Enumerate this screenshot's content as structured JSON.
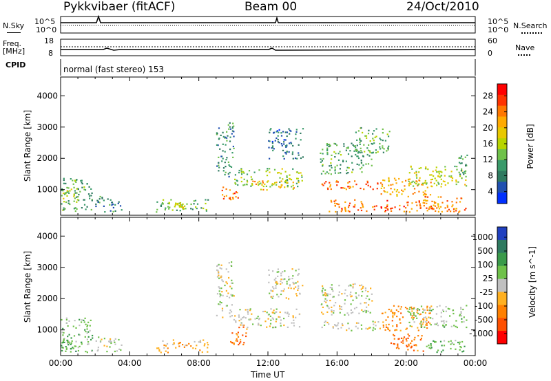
{
  "header": {
    "station": "Pykkvibaer (fitACF)",
    "beam": "Beam 00",
    "date": "24/Oct/2010"
  },
  "nsky_panel": {
    "left_label": "N.Sky",
    "right_label": "N.Search",
    "left_ticks": [
      "10^5",
      "10^0"
    ],
    "right_ticks": [
      "10^5",
      "10^0"
    ]
  },
  "freq_panel": {
    "left_label_line1": "Freq.",
    "left_label_line2": "[MHz]",
    "right_label": "Nave",
    "left_ticks": [
      "18",
      "8"
    ],
    "right_ticks": [
      "60",
      "0"
    ]
  },
  "cpid_panel": {
    "label": "CPID",
    "text": "normal (fast stereo) 153"
  },
  "power_colorbar": {
    "label": "Power [dB]",
    "ticks": [
      "28",
      "24",
      "20",
      "16",
      "12",
      "8",
      "4"
    ],
    "colors": [
      "#ff0000",
      "#ff3300",
      "#ff7700",
      "#ffaa00",
      "#e8c800",
      "#b8d400",
      "#6fc14a",
      "#3a9a6a",
      "#2f7a60",
      "#2050b0",
      "#0030ff"
    ]
  },
  "velocity_colorbar": {
    "label": "Velocity [m s^-1]",
    "ticks": [
      "1000",
      "500",
      "100",
      "25",
      "-25",
      "-100",
      "-500",
      "-1000"
    ],
    "colors": [
      "#2040c0",
      "#2f7a60",
      "#3a9a4a",
      "#6fc14a",
      "#c0c0c0",
      "#ffb020",
      "#ff8000",
      "#ff5000",
      "#ff0000"
    ]
  },
  "axes": {
    "ylabel": "Slant Range [km]",
    "xlabel": "Time UT",
    "yticks": [
      "4000",
      "3000",
      "2000",
      "1000"
    ],
    "xticks": [
      "00:00",
      "04:00",
      "08:00",
      "12:00",
      "16:00",
      "20:00",
      "00:00"
    ]
  },
  "chart_data": [
    {
      "type": "heatmap",
      "title": "Power",
      "xlabel": "Time UT",
      "ylabel": "Slant Range [km]",
      "xlim": [
        0,
        24
      ],
      "ylim": [
        180,
        4600
      ],
      "colorbar": {
        "label": "Power [dB]",
        "range": [
          0,
          32
        ]
      },
      "regions": [
        {
          "t": [
            0.0,
            1.8
          ],
          "r": [
            300,
            1400
          ],
          "v": 10
        },
        {
          "t": [
            0.0,
            1.0
          ],
          "r": [
            600,
            1100
          ],
          "v": 16
        },
        {
          "t": [
            2.0,
            3.5
          ],
          "r": [
            300,
            800
          ],
          "v": 8
        },
        {
          "t": [
            5.5,
            8.5
          ],
          "r": [
            300,
            700
          ],
          "v": 12
        },
        {
          "t": [
            6.5,
            7.2
          ],
          "r": [
            400,
            600
          ],
          "v": 18
        },
        {
          "t": [
            9.0,
            10.0
          ],
          "r": [
            1400,
            3200
          ],
          "v": 8
        },
        {
          "t": [
            9.3,
            10.3
          ],
          "r": [
            700,
            1100
          ],
          "v": 26
        },
        {
          "t": [
            10.0,
            14.0
          ],
          "r": [
            1100,
            1700
          ],
          "v": 14
        },
        {
          "t": [
            11.0,
            13.5
          ],
          "r": [
            1000,
            1300
          ],
          "v": 22
        },
        {
          "t": [
            12.0,
            14.0
          ],
          "r": [
            2000,
            3000
          ],
          "v": 6
        },
        {
          "t": [
            15.0,
            18.5
          ],
          "r": [
            1000,
            1300
          ],
          "v": 26
        },
        {
          "t": [
            15.0,
            18.0
          ],
          "r": [
            1500,
            2500
          ],
          "v": 10
        },
        {
          "t": [
            17.0,
            19.0
          ],
          "r": [
            2200,
            3000
          ],
          "v": 12
        },
        {
          "t": [
            15.5,
            22.0
          ],
          "r": [
            300,
            700
          ],
          "v": 26
        },
        {
          "t": [
            18.5,
            21.5
          ],
          "r": [
            800,
            1400
          ],
          "v": 22
        },
        {
          "t": [
            20.0,
            23.5
          ],
          "r": [
            1100,
            1800
          ],
          "v": 16
        },
        {
          "t": [
            21.0,
            23.5
          ],
          "r": [
            300,
            800
          ],
          "v": 24
        },
        {
          "t": [
            23.0,
            23.5
          ],
          "r": [
            1400,
            2200
          ],
          "v": 10
        }
      ]
    },
    {
      "type": "heatmap",
      "title": "Velocity",
      "xlabel": "Time UT",
      "ylabel": "Slant Range [km]",
      "xlim": [
        0,
        24
      ],
      "ylim": [
        180,
        4600
      ],
      "colorbar": {
        "label": "Velocity [m s^-1]",
        "range": [
          -1000,
          1000
        ]
      },
      "regions": [
        {
          "t": [
            0.0,
            1.8
          ],
          "r": [
            300,
            1400
          ],
          "v": 200
        },
        {
          "t": [
            0.0,
            1.0
          ],
          "r": [
            300,
            700
          ],
          "v": 400
        },
        {
          "t": [
            2.0,
            3.5
          ],
          "r": [
            300,
            800
          ],
          "v": 0
        },
        {
          "t": [
            5.5,
            8.5
          ],
          "r": [
            300,
            700
          ],
          "v": -300
        },
        {
          "t": [
            9.0,
            10.0
          ],
          "r": [
            1400,
            3200
          ],
          "v": 0
        },
        {
          "t": [
            9.8,
            10.8
          ],
          "r": [
            500,
            1200
          ],
          "v": -500
        },
        {
          "t": [
            10.0,
            14.0
          ],
          "r": [
            1100,
            1700
          ],
          "v": 0
        },
        {
          "t": [
            12.0,
            14.0
          ],
          "r": [
            2000,
            3000
          ],
          "v": 0
        },
        {
          "t": [
            15.0,
            18.5
          ],
          "r": [
            1000,
            1300
          ],
          "v": 0
        },
        {
          "t": [
            15.0,
            18.0
          ],
          "r": [
            1500,
            2500
          ],
          "v": 0
        },
        {
          "t": [
            18.5,
            21.5
          ],
          "r": [
            1000,
            1800
          ],
          "v": -400
        },
        {
          "t": [
            19.0,
            21.0
          ],
          "r": [
            300,
            900
          ],
          "v": -600
        },
        {
          "t": [
            20.0,
            23.5
          ],
          "r": [
            1100,
            1800
          ],
          "v": 150
        },
        {
          "t": [
            21.0,
            23.5
          ],
          "r": [
            300,
            700
          ],
          "v": 300
        }
      ]
    }
  ]
}
